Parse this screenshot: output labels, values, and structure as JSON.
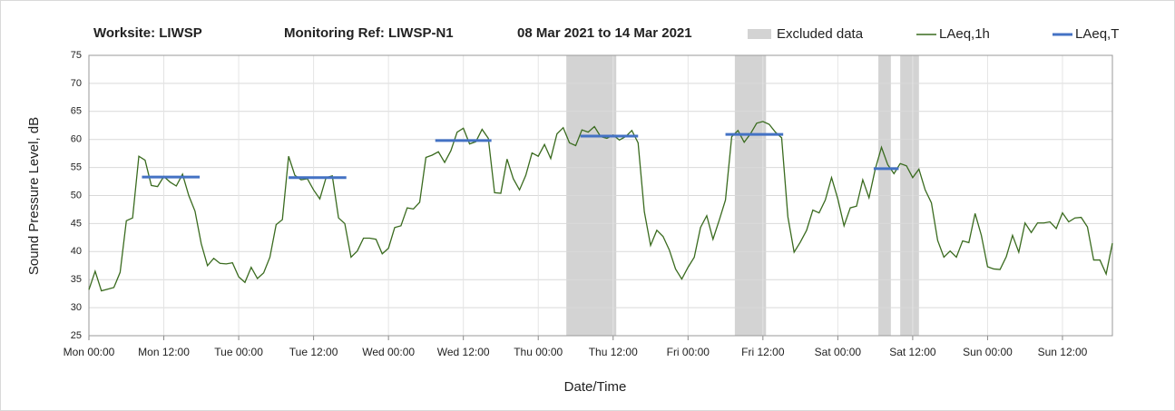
{
  "chart_data": {
    "type": "line",
    "header": [
      "Worksite: LIWSP",
      "Monitoring Ref: LIWSP-N1",
      "08 Mar 2021 to 14 Mar 2021"
    ],
    "xlabel": "Date/Time",
    "ylabel": "Sound Pressure Level, dB",
    "xlim": [
      0,
      164
    ],
    "ylim": [
      25,
      75
    ],
    "yticks": [
      25,
      30,
      35,
      40,
      45,
      50,
      55,
      60,
      65,
      70,
      75
    ],
    "xticks": [
      {
        "value": 0,
        "label": "Mon 00:00"
      },
      {
        "value": 12,
        "label": "Mon 12:00"
      },
      {
        "value": 24,
        "label": "Tue 00:00"
      },
      {
        "value": 36,
        "label": "Tue 12:00"
      },
      {
        "value": 48,
        "label": "Wed 00:00"
      },
      {
        "value": 60,
        "label": "Wed 12:00"
      },
      {
        "value": 72,
        "label": "Thu 00:00"
      },
      {
        "value": 84,
        "label": "Thu 12:00"
      },
      {
        "value": 96,
        "label": "Fri 00:00"
      },
      {
        "value": 108,
        "label": "Fri 12:00"
      },
      {
        "value": 120,
        "label": "Sat 00:00"
      },
      {
        "value": 132,
        "label": "Sat 12:00"
      },
      {
        "value": 144,
        "label": "Sun 00:00"
      },
      {
        "value": 156,
        "label": "Sun 12:00"
      }
    ],
    "grid": true,
    "excluded": {
      "name": "Excluded data",
      "color": "#d3d3d3",
      "ranges": [
        [
          76.5,
          84.5
        ],
        [
          103.5,
          108.5
        ],
        [
          126.5,
          128.5
        ],
        [
          130,
          133
        ]
      ]
    },
    "x": [
      0,
      1,
      2,
      3,
      4,
      5,
      6,
      7,
      8,
      9,
      10,
      11,
      12,
      13,
      14,
      15,
      16,
      17,
      18,
      19,
      20,
      21,
      22,
      23,
      24,
      25,
      26,
      27,
      28,
      29,
      30,
      31,
      32,
      33,
      34,
      35,
      36,
      37,
      38,
      39,
      40,
      41,
      42,
      43,
      44,
      45,
      46,
      47,
      48,
      49,
      50,
      51,
      52,
      53,
      54,
      55,
      56,
      57,
      58,
      59,
      60,
      61,
      62,
      63,
      64,
      65,
      66,
      67,
      68,
      69,
      70,
      71,
      72,
      73,
      74,
      75,
      76,
      77,
      78,
      79,
      80,
      81,
      82,
      83,
      84,
      85,
      86,
      87,
      88,
      89,
      90,
      91,
      92,
      93,
      94,
      95,
      96,
      97,
      98,
      99,
      100,
      101,
      102,
      103,
      104,
      105,
      106,
      107,
      108,
      109,
      110,
      111,
      112,
      113,
      114,
      115,
      116,
      117,
      118,
      119,
      120,
      121,
      122,
      123,
      124,
      125,
      126,
      127,
      128,
      129,
      130,
      131,
      132,
      133,
      134,
      135,
      136,
      137,
      138,
      139,
      140,
      141,
      142,
      143,
      144,
      145,
      146,
      147,
      148,
      149,
      150,
      151,
      152,
      153,
      154,
      155,
      156,
      157,
      158,
      159,
      160,
      161,
      162,
      163,
      164
    ],
    "series": [
      {
        "name": "LAeq,1h",
        "color": "#3a6b1f",
        "values": [
          33.2,
          36.5,
          33,
          33.3,
          33.6,
          36.3,
          45.5,
          46,
          57,
          56.3,
          51.8,
          51.6,
          53.4,
          52.4,
          51.7,
          53.8,
          50,
          47.2,
          41.4,
          37.5,
          38.8,
          37.9,
          37.8,
          38,
          35.5,
          34.5,
          37.2,
          35.2,
          36.2,
          39,
          44.8,
          45.7,
          57,
          53.6,
          52.8,
          53,
          51,
          49.4,
          53.2,
          53.5,
          46,
          45,
          39,
          40.1,
          42.4,
          42.4,
          42.2,
          39.6,
          40.6,
          44.3,
          44.6,
          47.8,
          47.6,
          48.8,
          56.8,
          57.2,
          57.8,
          55.9,
          58,
          61.3,
          62,
          59.2,
          59.6,
          61.8,
          60.2,
          50.5,
          50.4,
          56.5,
          53,
          51,
          53.6,
          57.6,
          57,
          59.1,
          56.6,
          61,
          62.1,
          59.4,
          58.9,
          61.7,
          61.3,
          62.3,
          60.5,
          60.2,
          60.8,
          59.9,
          60.5,
          61.6,
          59.4,
          47.1,
          41.1,
          43.8,
          42.7,
          40.3,
          36.9,
          35.1,
          37.2,
          39,
          44.3,
          46.4,
          42.2,
          45.6,
          49.2,
          60.5,
          61.6,
          59.5,
          61,
          62.9,
          63.2,
          62.7,
          61.3,
          60.3,
          46.2,
          39.9,
          41.7,
          43.8,
          47.4,
          46.9,
          49.2,
          53.2,
          49.4,
          44.6,
          47.8,
          48.1,
          52.8,
          49.6,
          54.7,
          58.6,
          55.5,
          53.9,
          55.7,
          55.3,
          53.2,
          54.7,
          51,
          48.7,
          42,
          39,
          40.1,
          39,
          41.9,
          41.6,
          46.8,
          42.9,
          37.3,
          36.9,
          36.8,
          39.1,
          42.9,
          39.9,
          45.1,
          43.4,
          45.1,
          45.1,
          45.3,
          44.1,
          46.9,
          45.3,
          46,
          46.1,
          44.4,
          38.5,
          38.5,
          36,
          41.5
        ]
      },
      {
        "name": "LAeq,T",
        "color": "#4472c4",
        "segments": [
          {
            "x": [
              8.5,
              17.75
            ],
            "value": 53.3
          },
          {
            "x": [
              32,
              41.25
            ],
            "value": 53.2
          },
          {
            "x": [
              55.5,
              64.5
            ],
            "value": 59.8
          },
          {
            "x": [
              78.75,
              88
            ],
            "value": 60.6
          },
          {
            "x": [
              102,
              111.25
            ],
            "value": 60.9
          },
          {
            "x": [
              125.75,
              129.75
            ],
            "value": 54.8
          }
        ]
      }
    ]
  }
}
